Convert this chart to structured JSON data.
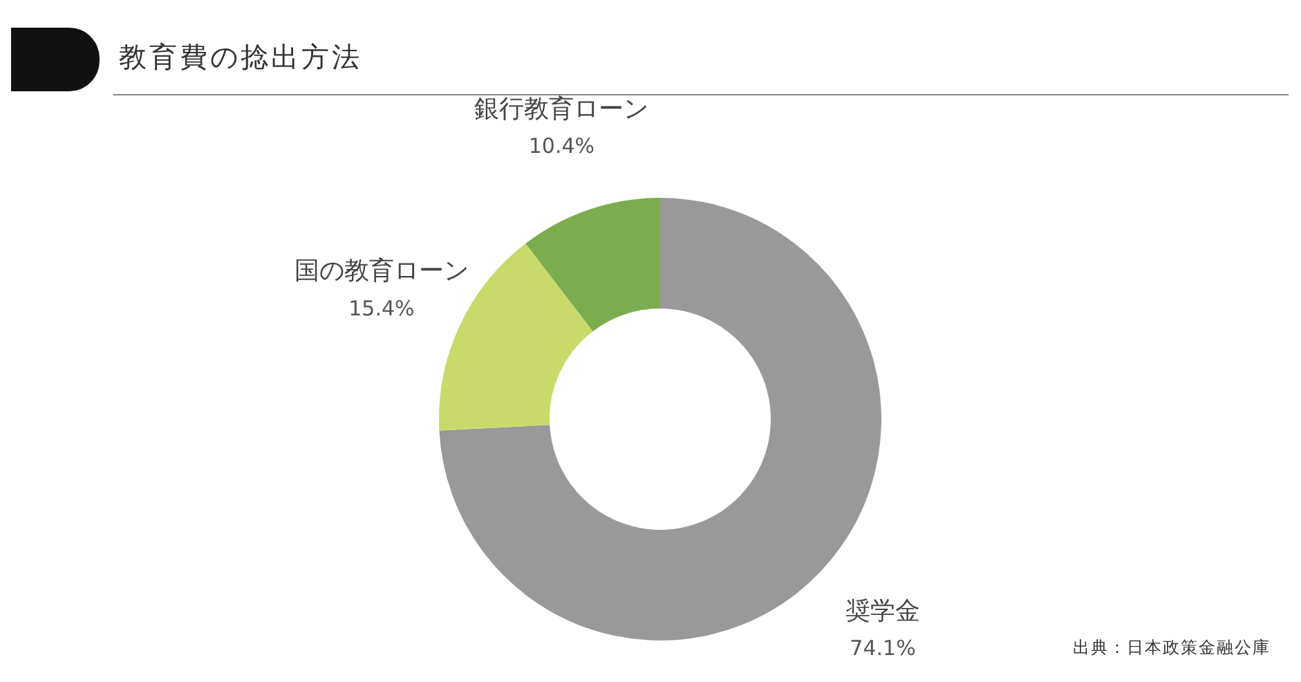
{
  "chart_data": {
    "type": "donut",
    "title": "教育費の捻出方法",
    "categories": [
      "奨学金",
      "国の教育ローン",
      "銀行教育ローン"
    ],
    "values": [
      74.1,
      15.4,
      10.4
    ],
    "colors": [
      "#999999",
      "#c9da6b",
      "#7bad4f"
    ],
    "value_labels": [
      "74.1%",
      "15.4%",
      "10.4%"
    ],
    "annotations": [
      "出典：日本政策金融公庫"
    ]
  }
}
